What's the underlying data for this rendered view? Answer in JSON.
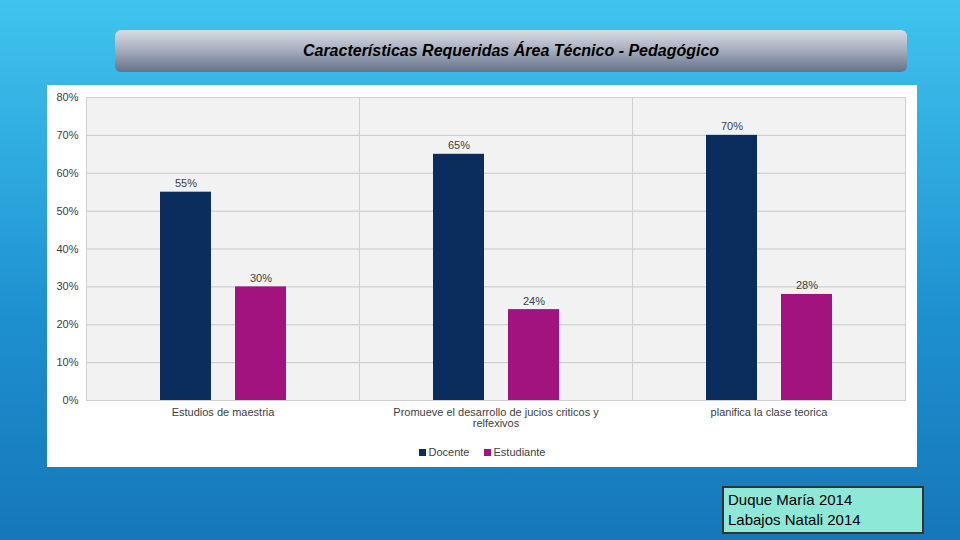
{
  "chart_data": {
    "type": "bar",
    "title": "Características Requeridas Área Técnico - Pedagógico",
    "categories": [
      "Estudios de maestria",
      "Promueve el desarrollo de jucios criticos y relfexivos",
      "planifica la clase teorica"
    ],
    "series": [
      {
        "name": "Docente",
        "color": "#0b2d5e",
        "values": [
          55,
          65,
          70
        ],
        "value_labels": [
          "55%",
          "65%",
          "70%"
        ]
      },
      {
        "name": "Estudiante",
        "color": "#a3137f",
        "values": [
          30,
          24,
          28
        ],
        "value_labels": [
          "30%",
          "24%",
          "28%"
        ]
      }
    ],
    "ylim": [
      0,
      80
    ],
    "yticks": [
      {
        "value": 0,
        "label": "0%"
      },
      {
        "value": 10,
        "label": "10%"
      },
      {
        "value": 20,
        "label": "20%"
      },
      {
        "value": 30,
        "label": "30%"
      },
      {
        "value": 40,
        "label": "40%"
      },
      {
        "value": 50,
        "label": "50%"
      },
      {
        "value": 60,
        "label": "60%"
      },
      {
        "value": 70,
        "label": "70%"
      },
      {
        "value": 80,
        "label": "80%"
      }
    ],
    "grid": true,
    "legend": "bottom",
    "data_labels": true,
    "annotations": [
      "Duque María 2014",
      "Labajos Natali 2014"
    ]
  }
}
